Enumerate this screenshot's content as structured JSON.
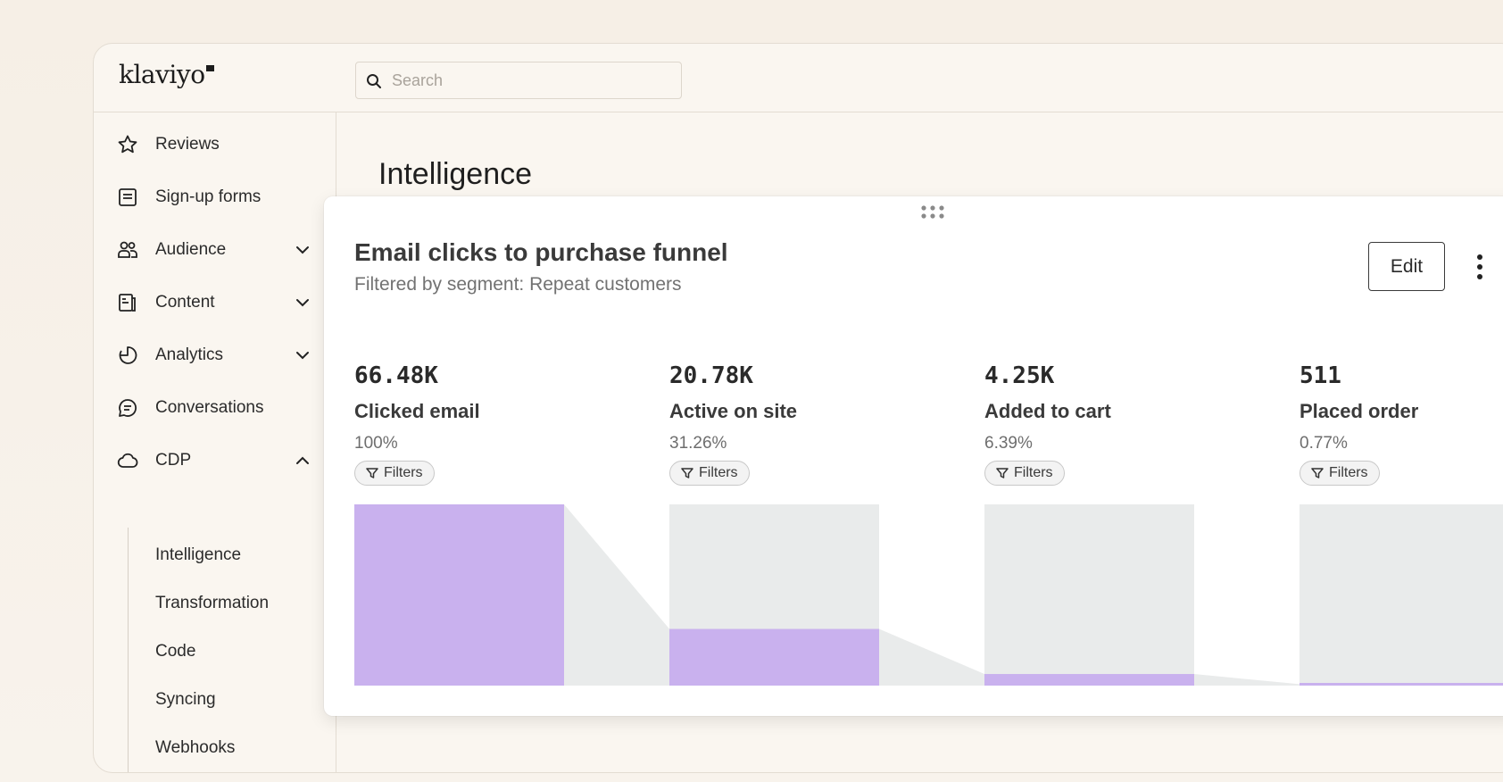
{
  "brand": {
    "name": "klaviyo"
  },
  "search": {
    "placeholder": "Search"
  },
  "sidebar": {
    "items": [
      {
        "label": "Reviews",
        "icon": "star-icon"
      },
      {
        "label": "Sign-up forms",
        "icon": "form-icon"
      },
      {
        "label": "Audience",
        "icon": "people-icon",
        "expandable": true
      },
      {
        "label": "Content",
        "icon": "content-icon",
        "expandable": true
      },
      {
        "label": "Analytics",
        "icon": "analytics-icon",
        "expandable": true
      },
      {
        "label": "Conversations",
        "icon": "chat-icon"
      },
      {
        "label": "CDP",
        "icon": "cloud-icon",
        "expandable": true,
        "expanded": true
      }
    ],
    "cdp_subitems": [
      "Intelligence",
      "Transformation",
      "Code",
      "Syncing",
      "Webhooks"
    ]
  },
  "page": {
    "title": "Intelligence"
  },
  "card": {
    "title": "Email clicks to purchase funnel",
    "subtitle": "Filtered by segment: Repeat customers",
    "edit_label": "Edit",
    "filter_label": "Filters"
  },
  "chart_data": {
    "type": "bar",
    "categories": [
      "Clicked email",
      "Active on site",
      "Added to cart",
      "Placed order"
    ],
    "counts": [
      "66.48K",
      "20.78K",
      "4.25K",
      "511"
    ],
    "values": [
      66480,
      20780,
      4250,
      511
    ],
    "percentages": [
      "100%",
      "31.26%",
      "6.39%",
      "0.77%"
    ],
    "percent_values": [
      100,
      31.26,
      6.39,
      0.77
    ],
    "ylim": [
      0,
      100
    ],
    "colors": {
      "filled": "#c9b1ee",
      "track": "#e9ebeb",
      "connector": "#e9ebeb"
    }
  }
}
